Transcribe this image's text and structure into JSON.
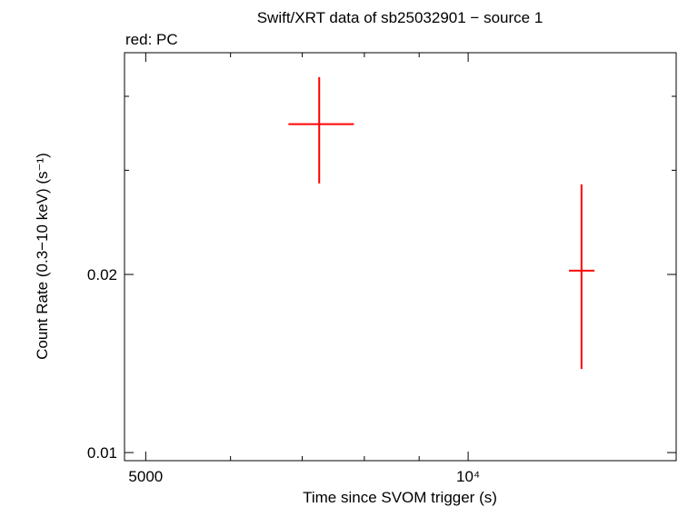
{
  "chart_data": {
    "type": "errorbar",
    "title": "Swift/XRT data of sb25032901 − source 1",
    "subtitle": "red: PC",
    "x_label": "Time since SVOM trigger (s)",
    "y_label": "Count Rate (0.3−10 keV) (s⁻¹)",
    "x_log": true,
    "y_log": true,
    "xlim": [
      4777,
      15640
    ],
    "ylim": [
      0.00969,
      0.0474
    ],
    "xticks": [
      5000,
      {
        "value": 10000,
        "label": "10⁴"
      }
    ],
    "minor_xticks": [
      6000,
      7000,
      8000,
      9000
    ],
    "yticks": [
      0.01,
      0.02
    ],
    "minor_yticks": [
      0.03,
      0.04
    ],
    "series": [
      {
        "color": "#ff0000",
        "x": [
          7260,
          12760
        ],
        "x_low": [
          6795,
          12420
        ],
        "x_high": [
          7822,
          13120
        ],
        "values": [
          0.0359,
          0.0203
        ],
        "y_low": [
          0.0285,
          0.01384
        ],
        "y_high": [
          0.0431,
          0.0284
        ]
      }
    ]
  }
}
